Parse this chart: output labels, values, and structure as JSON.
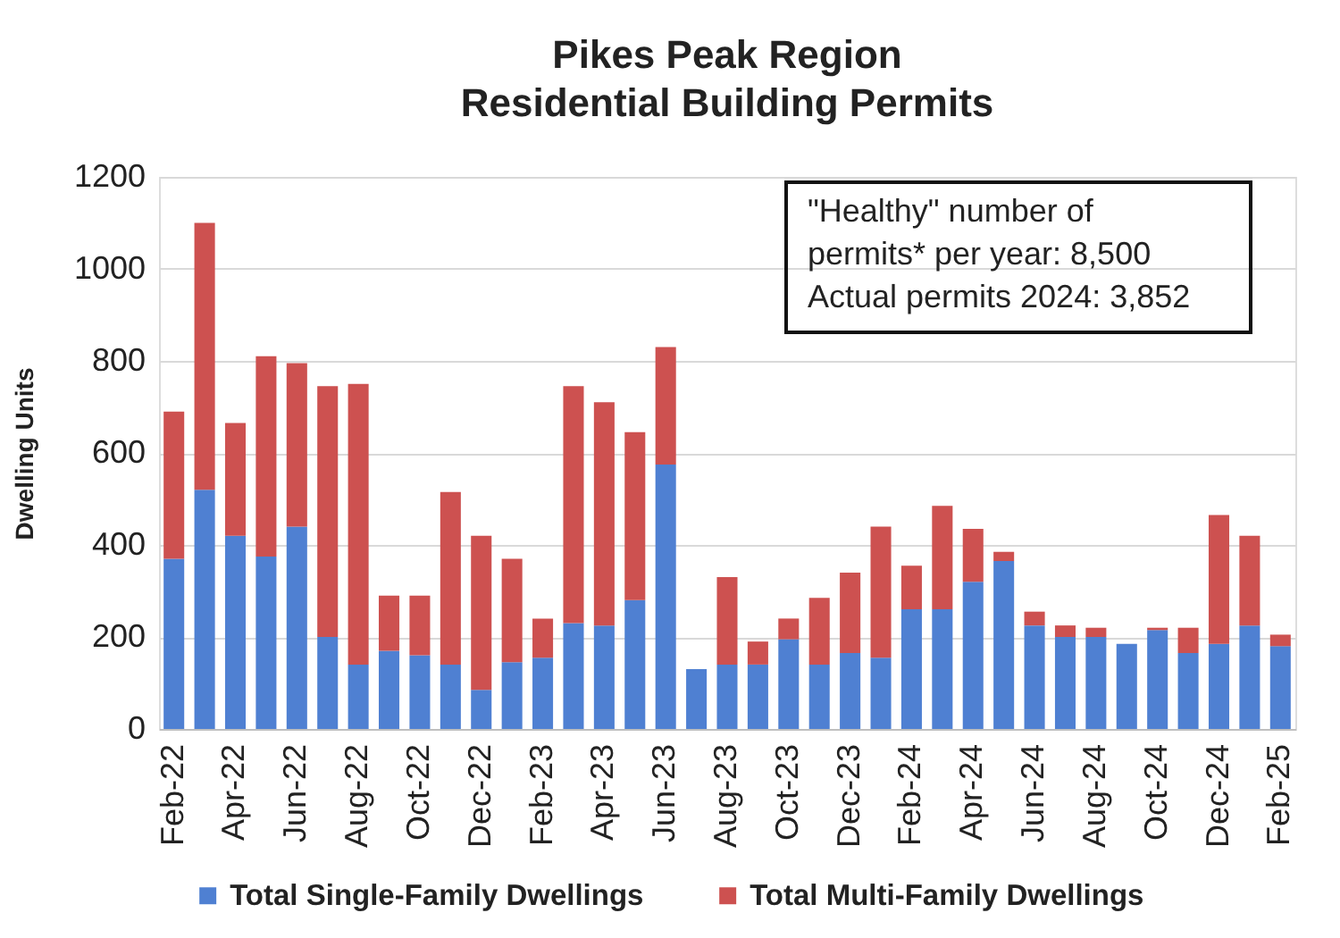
{
  "chart_data": {
    "type": "bar",
    "title": "Pikes Peak Region",
    "subtitle": "Residential Building Permits",
    "ylabel": "Dwelling Units",
    "categories": [
      "Feb-22",
      null,
      "Apr-22",
      null,
      "Jun-22",
      null,
      "Aug-22",
      null,
      "Oct-22",
      null,
      "Dec-22",
      null,
      "Feb-23",
      null,
      "Apr-23",
      null,
      "Jun-23",
      null,
      "Aug-23",
      null,
      "Oct-23",
      null,
      "Dec-23",
      null,
      "Feb-24",
      null,
      "Apr-24",
      null,
      "Jun-24",
      null,
      "Aug-24",
      null,
      "Oct-24",
      null,
      "Dec-24",
      null,
      "Feb-25"
    ],
    "series": [
      {
        "name": "Total Single-Family Dwellings",
        "color": "#4f80d2",
        "values": [
          370,
          520,
          420,
          375,
          440,
          200,
          140,
          170,
          160,
          140,
          85,
          145,
          155,
          230,
          225,
          280,
          575,
          130,
          140,
          140,
          195,
          140,
          165,
          155,
          260,
          260,
          320,
          365,
          225,
          200,
          200,
          185,
          215,
          165,
          185,
          225,
          180
        ]
      },
      {
        "name": "Total Multi-Family Dwellings",
        "color": "#cd5150",
        "values": [
          320,
          580,
          245,
          435,
          355,
          545,
          610,
          120,
          130,
          375,
          335,
          225,
          85,
          515,
          485,
          365,
          255,
          0,
          190,
          50,
          45,
          145,
          175,
          285,
          95,
          225,
          115,
          20,
          30,
          25,
          20,
          0,
          5,
          55,
          280,
          195,
          25
        ]
      }
    ],
    "stacked": true,
    "ylim": [
      0,
      1200
    ],
    "yticks": [
      0,
      200,
      400,
      600,
      800,
      1000,
      1200
    ],
    "grid": "y",
    "legend": "bottom",
    "annotations": [
      "\"Healthy\" number of permits* per year: 8,500",
      "Actual permits 2024: 3,852"
    ]
  }
}
